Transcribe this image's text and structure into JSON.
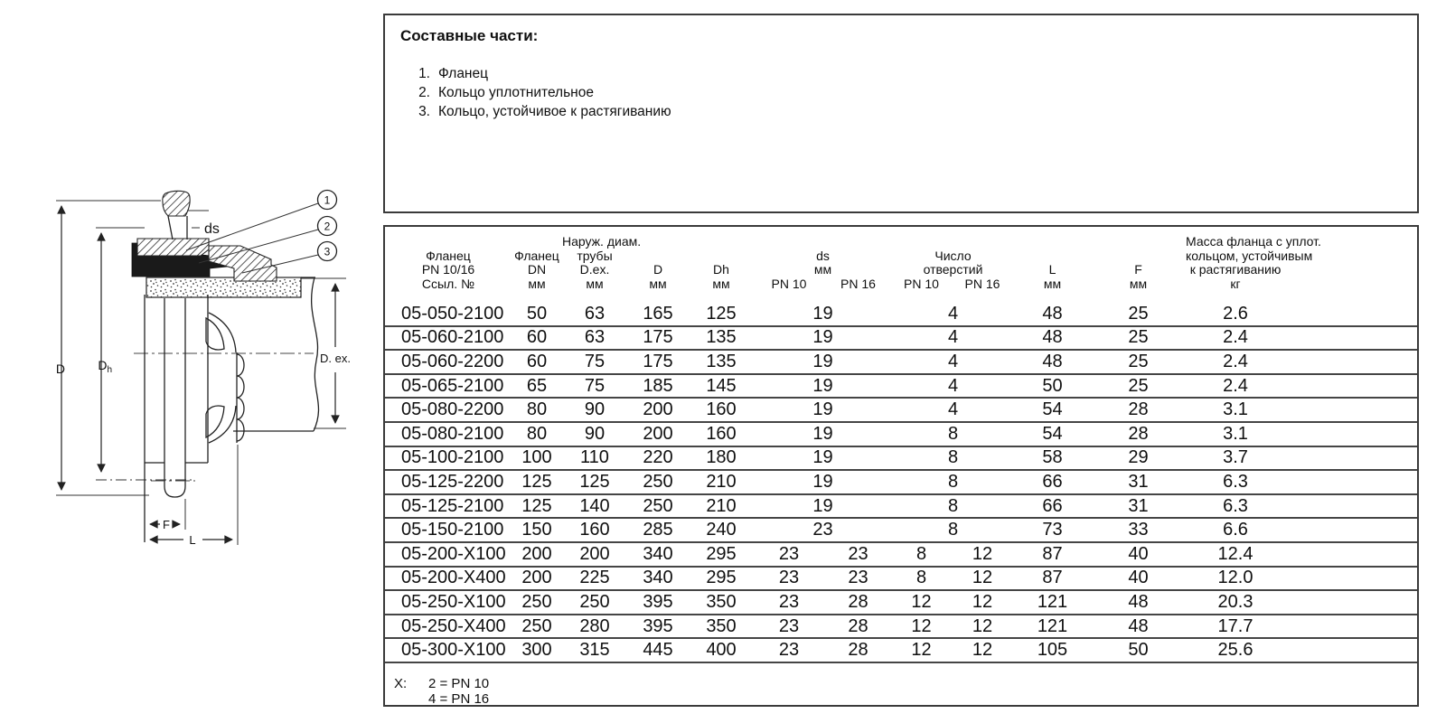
{
  "components": {
    "title": "Составные части:",
    "items": [
      {
        "num": "1.",
        "label": "Фланец"
      },
      {
        "num": "2.",
        "label": "Кольцо уплотнительное"
      },
      {
        "num": "3.",
        "label": "Кольцо, устойчивое к растягиванию"
      }
    ]
  },
  "diagram": {
    "labels": {
      "ds": "ds",
      "d": "D",
      "dh_main": "D",
      "dh_sub": "h",
      "dex": "D. ex.",
      "f": "F",
      "l": "L"
    },
    "callouts": [
      "1",
      "2",
      "3"
    ]
  },
  "table": {
    "columns": {
      "ref": [
        "Фланец",
        "PN 10/16",
        "Ссыл. №"
      ],
      "dn": [
        "Фланец",
        "DN",
        "мм"
      ],
      "dex": [
        "Наруж. диам.",
        "трубы",
        "D.ex.",
        "мм"
      ],
      "d": [
        "D",
        "мм"
      ],
      "dh": [
        "Dh",
        "мм"
      ],
      "ds": [
        "ds",
        "мм"
      ],
      "holes": [
        "Число",
        "отверстий"
      ],
      "l": [
        "L",
        "мм"
      ],
      "f": [
        "F",
        "мм"
      ],
      "mass": [
        "Масса фланца с уплот.",
        "кольцом, устойчивым",
        "к растягиванию",
        "кг"
      ]
    },
    "pn": {
      "ds10": "PN 10",
      "ds16": "PN 16",
      "h10": "PN 10",
      "h16": "PN 16"
    },
    "rows": [
      {
        "ref": "05-050-2100",
        "dn": "50",
        "dex": "63",
        "d": "165",
        "dh": "125",
        "ds_pn10": "19",
        "ds_pn16": null,
        "holes_pn10": "4",
        "holes_pn16": null,
        "l": "48",
        "f": "25",
        "mass": "2.6"
      },
      {
        "ref": "05-060-2100",
        "dn": "60",
        "dex": "63",
        "d": "175",
        "dh": "135",
        "ds_pn10": "19",
        "ds_pn16": null,
        "holes_pn10": "4",
        "holes_pn16": null,
        "l": "48",
        "f": "25",
        "mass": "2.4"
      },
      {
        "ref": "05-060-2200",
        "dn": "60",
        "dex": "75",
        "d": "175",
        "dh": "135",
        "ds_pn10": "19",
        "ds_pn16": null,
        "holes_pn10": "4",
        "holes_pn16": null,
        "l": "48",
        "f": "25",
        "mass": "2.4"
      },
      {
        "ref": "05-065-2100",
        "dn": "65",
        "dex": "75",
        "d": "185",
        "dh": "145",
        "ds_pn10": "19",
        "ds_pn16": null,
        "holes_pn10": "4",
        "holes_pn16": null,
        "l": "50",
        "f": "25",
        "mass": "2.4"
      },
      {
        "ref": "05-080-2200",
        "dn": "80",
        "dex": "90",
        "d": "200",
        "dh": "160",
        "ds_pn10": "19",
        "ds_pn16": null,
        "holes_pn10": "4",
        "holes_pn16": null,
        "l": "54",
        "f": "28",
        "mass": "3.1"
      },
      {
        "ref": "05-080-2100",
        "dn": "80",
        "dex": "90",
        "d": "200",
        "dh": "160",
        "ds_pn10": "19",
        "ds_pn16": null,
        "holes_pn10": "8",
        "holes_pn16": null,
        "l": "54",
        "f": "28",
        "mass": "3.1"
      },
      {
        "ref": "05-100-2100",
        "dn": "100",
        "dex": "110",
        "d": "220",
        "dh": "180",
        "ds_pn10": "19",
        "ds_pn16": null,
        "holes_pn10": "8",
        "holes_pn16": null,
        "l": "58",
        "f": "29",
        "mass": "3.7"
      },
      {
        "ref": "05-125-2200",
        "dn": "125",
        "dex": "125",
        "d": "250",
        "dh": "210",
        "ds_pn10": "19",
        "ds_pn16": null,
        "holes_pn10": "8",
        "holes_pn16": null,
        "l": "66",
        "f": "31",
        "mass": "6.3"
      },
      {
        "ref": "05-125-2100",
        "dn": "125",
        "dex": "140",
        "d": "250",
        "dh": "210",
        "ds_pn10": "19",
        "ds_pn16": null,
        "holes_pn10": "8",
        "holes_pn16": null,
        "l": "66",
        "f": "31",
        "mass": "6.3"
      },
      {
        "ref": "05-150-2100",
        "dn": "150",
        "dex": "160",
        "d": "285",
        "dh": "240",
        "ds_pn10": "23",
        "ds_pn16": null,
        "holes_pn10": "8",
        "holes_pn16": null,
        "l": "73",
        "f": "33",
        "mass": "6.6"
      },
      {
        "ref": "05-200-X100",
        "dn": "200",
        "dex": "200",
        "d": "340",
        "dh": "295",
        "ds_pn10": "23",
        "ds_pn16": "23",
        "holes_pn10": "8",
        "holes_pn16": "12",
        "l": "87",
        "f": "40",
        "mass": "12.4"
      },
      {
        "ref": "05-200-X400",
        "dn": "200",
        "dex": "225",
        "d": "340",
        "dh": "295",
        "ds_pn10": "23",
        "ds_pn16": "23",
        "holes_pn10": "8",
        "holes_pn16": "12",
        "l": "87",
        "f": "40",
        "mass": "12.0"
      },
      {
        "ref": "05-250-X100",
        "dn": "250",
        "dex": "250",
        "d": "395",
        "dh": "350",
        "ds_pn10": "23",
        "ds_pn16": "28",
        "holes_pn10": "12",
        "holes_pn16": "12",
        "l": "121",
        "f": "48",
        "mass": "20.3"
      },
      {
        "ref": "05-250-X400",
        "dn": "250",
        "dex": "280",
        "d": "395",
        "dh": "350",
        "ds_pn10": "23",
        "ds_pn16": "28",
        "holes_pn10": "12",
        "holes_pn16": "12",
        "l": "121",
        "f": "48",
        "mass": "17.7"
      },
      {
        "ref": "05-300-X100",
        "dn": "300",
        "dex": "315",
        "d": "445",
        "dh": "400",
        "ds_pn10": "23",
        "ds_pn16": "28",
        "holes_pn10": "12",
        "holes_pn16": "12",
        "l": "105",
        "f": "50",
        "mass": "25.6"
      }
    ],
    "footnote": {
      "label": "X:",
      "lines": [
        "2 = PN 10",
        "4 = PN 16"
      ]
    }
  }
}
